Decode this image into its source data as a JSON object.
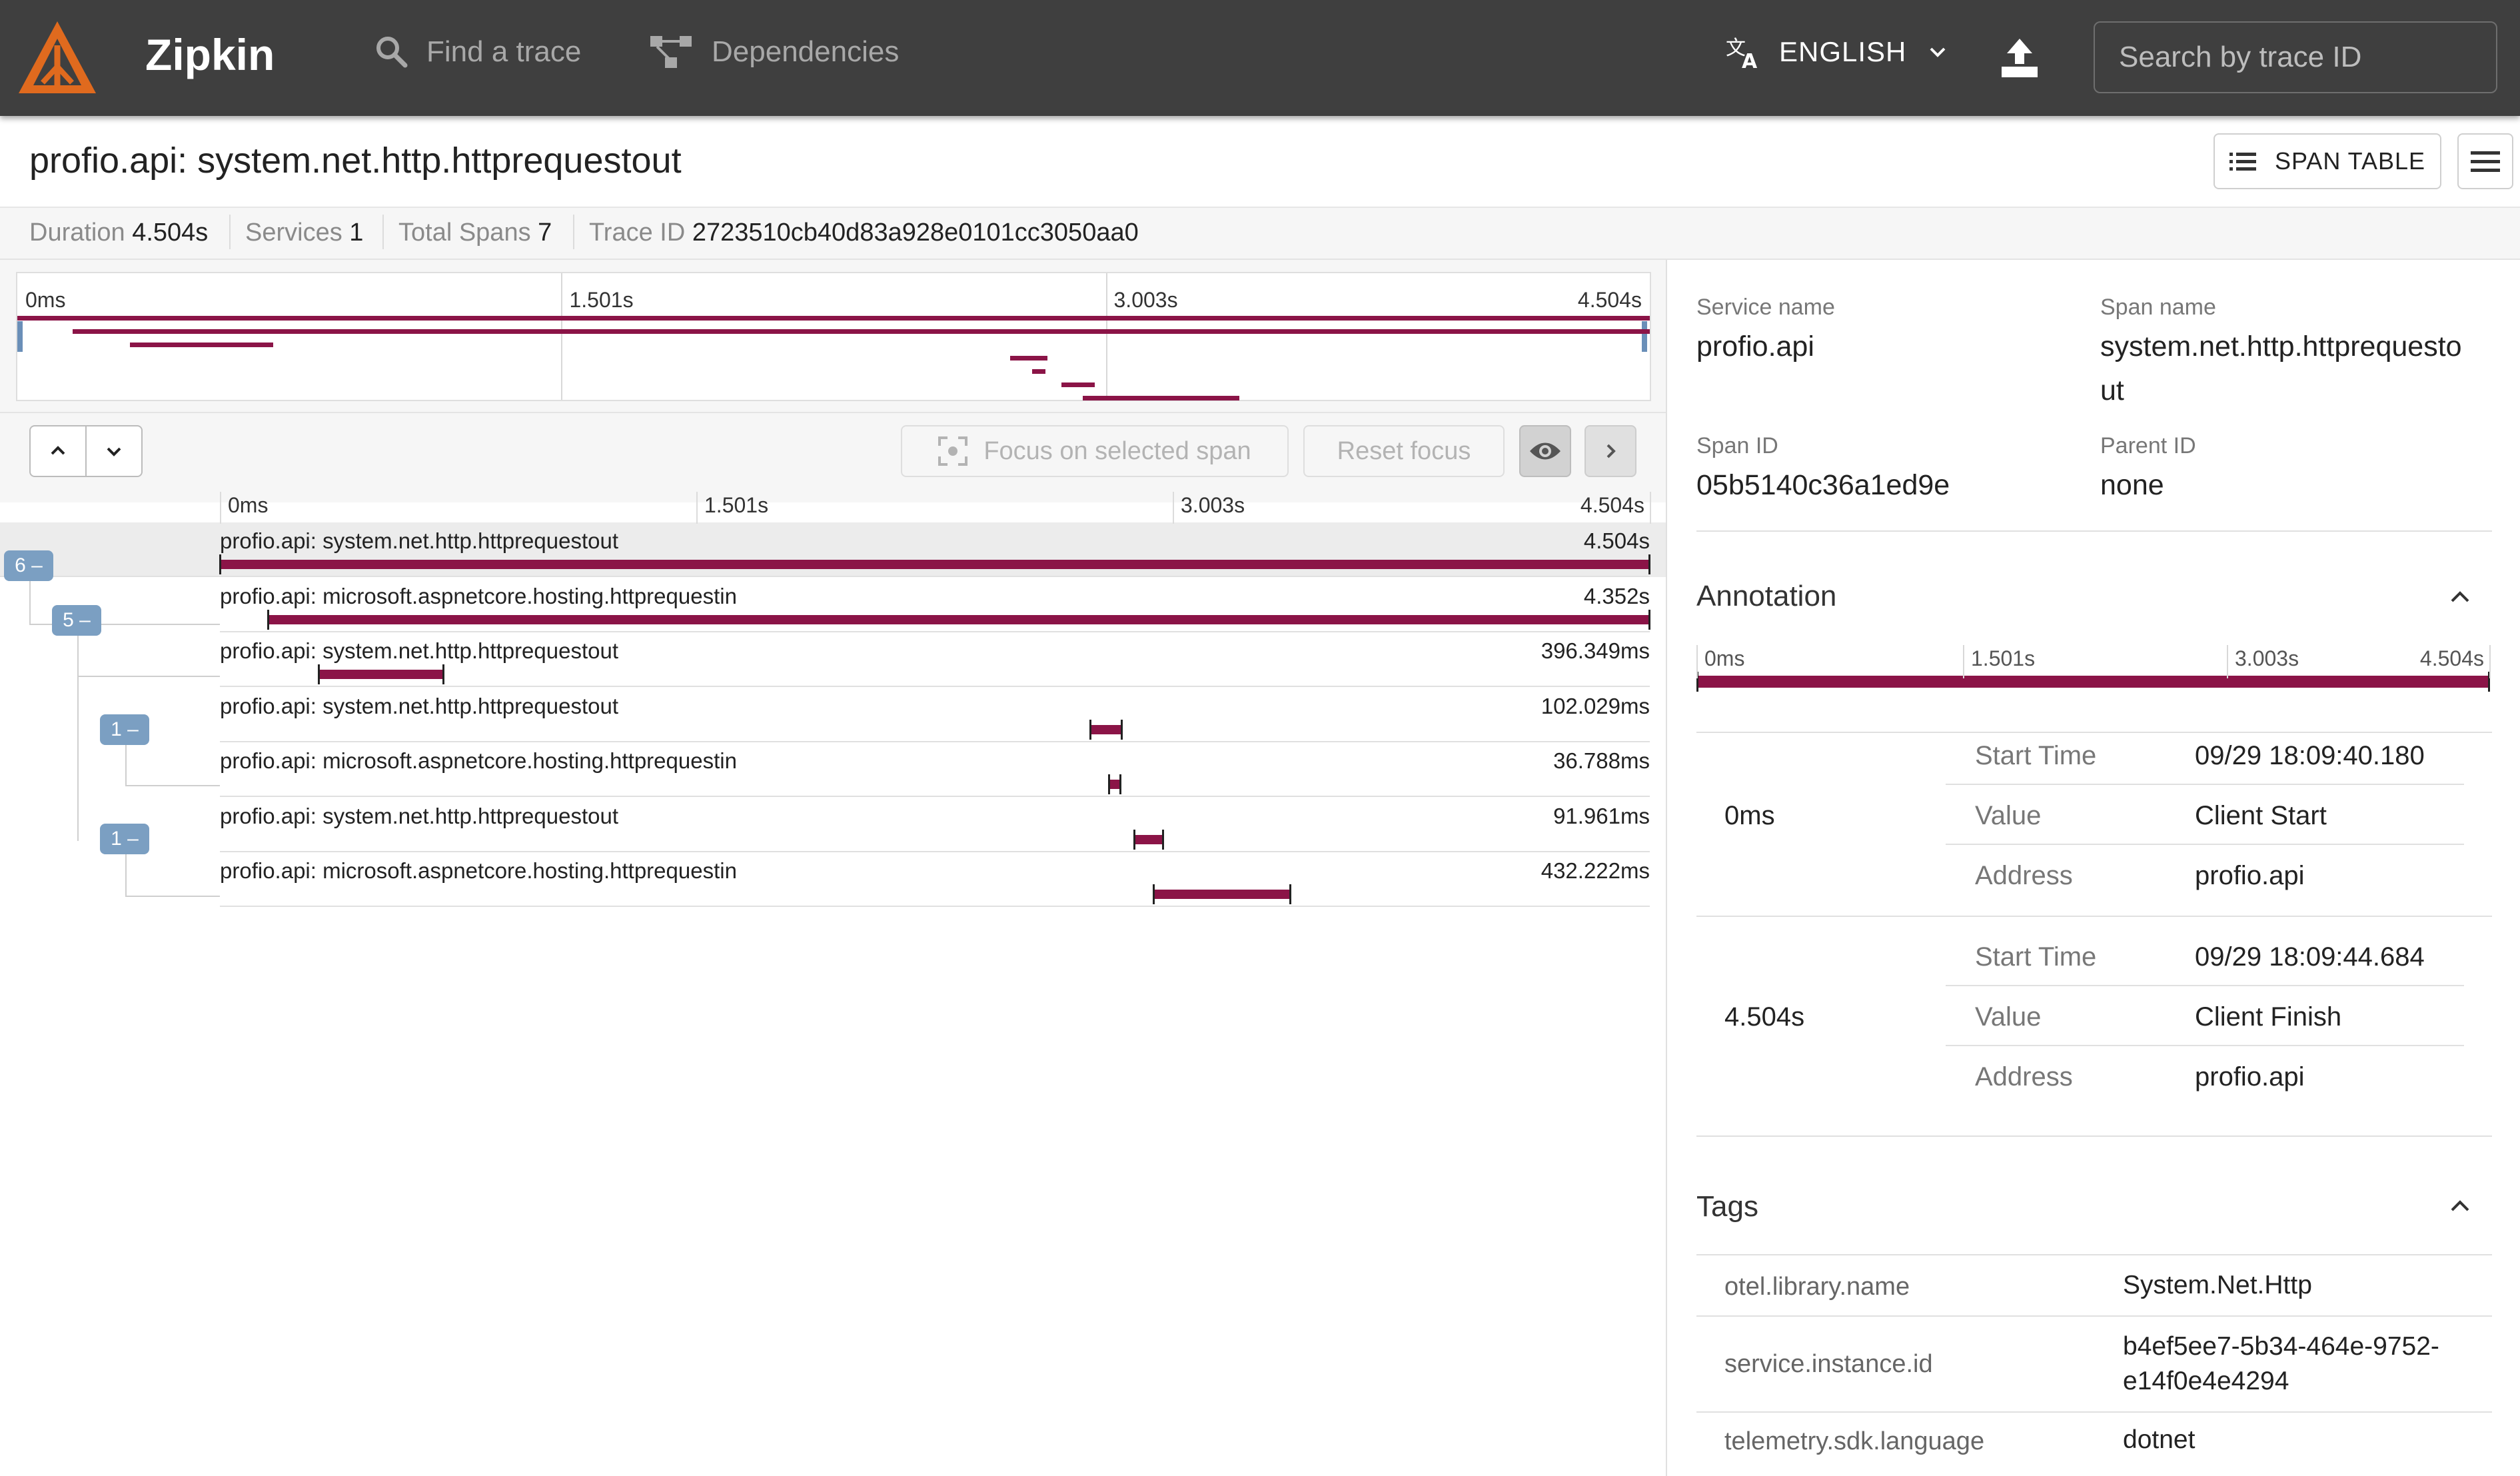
{
  "header": {
    "app_name": "Zipkin",
    "nav_find": "Find a trace",
    "nav_dependencies": "Dependencies",
    "language": "ENGLISH",
    "search_placeholder": "Search by trace ID",
    "brand_color": "#e06a1e"
  },
  "trace": {
    "title": "profio.api: system.net.http.httprequestout",
    "span_table_label": "SPAN TABLE"
  },
  "stats": {
    "duration_label": "Duration",
    "duration_value": "4.504s",
    "services_label": "Services",
    "services_value": "1",
    "spans_label": "Total Spans",
    "spans_value": "7",
    "traceid_label": "Trace ID",
    "traceid_value": "2723510cb40d83a928e0101cc3050aa0"
  },
  "timeline": {
    "ticks": [
      "0ms",
      "1.501s",
      "3.003s",
      "4.504s"
    ],
    "focus_label": "Focus on selected span",
    "reset_label": "Reset focus",
    "bar_color": "#8b1447"
  },
  "spans": [
    {
      "label": "profio.api: system.net.http.httprequestout",
      "duration": "4.504s",
      "start_s": 0.0,
      "dur_s": 4.504,
      "badge": "6 –"
    },
    {
      "label": "profio.api: microsoft.aspnetcore.hosting.httprequestin",
      "duration": "4.352s",
      "start_s": 0.152,
      "dur_s": 4.352,
      "badge": "5 –"
    },
    {
      "label": "profio.api: system.net.http.httprequestout",
      "duration": "396.349ms",
      "start_s": 0.31,
      "dur_s": 0.396
    },
    {
      "label": "profio.api: system.net.http.httprequestout",
      "duration": "102.029ms",
      "start_s": 2.74,
      "dur_s": 0.102,
      "badge": "1 –"
    },
    {
      "label": "profio.api: microsoft.aspnetcore.hosting.httprequestin",
      "duration": "36.788ms",
      "start_s": 2.8,
      "dur_s": 0.037
    },
    {
      "label": "profio.api: system.net.http.httprequestout",
      "duration": "91.961ms",
      "start_s": 2.88,
      "dur_s": 0.092,
      "badge": "1 –"
    },
    {
      "label": "profio.api: microsoft.aspnetcore.hosting.httprequestin",
      "duration": "432.222ms",
      "start_s": 2.94,
      "dur_s": 0.432
    }
  ],
  "detail": {
    "service_name_label": "Service name",
    "service_name": "profio.api",
    "span_name_label": "Span name",
    "span_name_line1": "system.net.http.httprequesto",
    "span_name_line2": "ut",
    "span_id_label": "Span ID",
    "span_id": "05b5140c36a1ed9e",
    "parent_id_label": "Parent ID",
    "parent_id": "none",
    "annotation_title": "Annotation",
    "annotation_ticks": [
      "0ms",
      "1.501s",
      "3.003s",
      "4.504s"
    ],
    "annotations": [
      {
        "time": "0ms",
        "start_time_label": "Start Time",
        "start_time": "09/29 18:09:40.180",
        "value_label": "Value",
        "value": "Client Start",
        "address_label": "Address",
        "address": "profio.api"
      },
      {
        "time": "4.504s",
        "start_time_label": "Start Time",
        "start_time": "09/29 18:09:44.684",
        "value_label": "Value",
        "value": "Client Finish",
        "address_label": "Address",
        "address": "profio.api"
      }
    ],
    "tags_title": "Tags",
    "tags": [
      {
        "key": "otel.library.name",
        "value": "System.Net.Http"
      },
      {
        "key": "service.instance.id",
        "value_line1": "b4ef5ee7-5b34-464e-9752-",
        "value_line2": "e14f0e4e4294"
      },
      {
        "key": "telemetry.sdk.language",
        "value": "dotnet"
      }
    ]
  }
}
